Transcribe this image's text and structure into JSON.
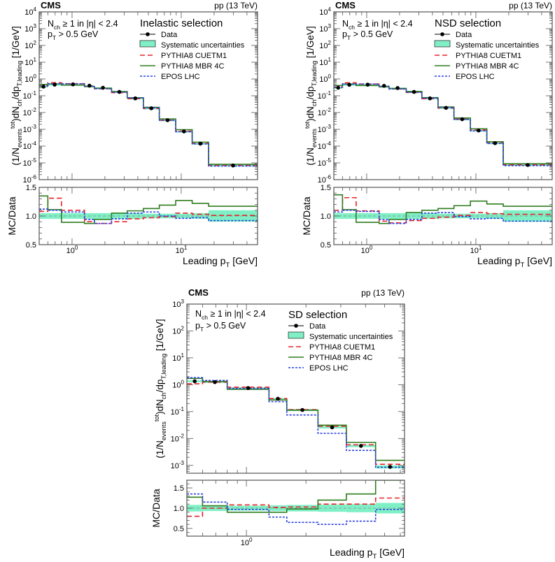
{
  "chart_data": [
    {
      "type": "line",
      "histtype": "step",
      "experiment": "CMS",
      "energy": "pp (13 TeV)",
      "title": "Inelastic selection",
      "conditions": [
        [
          [
            "n",
            "N"
          ],
          [
            "sb",
            "ch"
          ],
          [
            "n",
            " ≥ 1 in |η| < 2.4"
          ]
        ],
        [
          [
            "n",
            "p"
          ],
          [
            "sb",
            "T"
          ],
          [
            "n",
            " > 0.5 GeV"
          ]
        ]
      ],
      "xlabel": [
        [
          "n",
          "Leading p"
        ],
        [
          "sb",
          "T"
        ],
        [
          "n",
          " [GeV]"
        ]
      ],
      "ylabel": [
        [
          "n",
          "(1/N"
        ],
        [
          "sb",
          "events"
        ],
        [
          "sp",
          "tot"
        ],
        [
          "n",
          ")dN"
        ],
        [
          "sb",
          "ch"
        ],
        [
          "n",
          "/dp"
        ],
        [
          "sb",
          "T,leading"
        ],
        [
          "n",
          " [1/GeV]"
        ]
      ],
      "ratio_ylabel": "MC/Data",
      "xscale": "log",
      "yscale": "log",
      "xlim": [
        0.5,
        50
      ],
      "ylim": [
        1e-06,
        10000.0
      ],
      "ratio_ylim": [
        0.5,
        1.5
      ],
      "x_ticks": [
        {
          "base": "10",
          "exp": "0",
          "value": 1
        },
        {
          "base": "10",
          "exp": "1",
          "value": 10
        }
      ],
      "y_ticks": [
        {
          "base": "10",
          "exp": "-6",
          "value": 1e-06
        },
        {
          "base": "10",
          "exp": "-5",
          "value": 1e-05
        },
        {
          "base": "10",
          "exp": "-4",
          "value": 0.0001
        },
        {
          "base": "10",
          "exp": "-3",
          "value": 0.001
        },
        {
          "base": "10",
          "exp": "-2",
          "value": 0.01
        },
        {
          "base": "10",
          "exp": "-1",
          "value": 0.1
        },
        {
          "base": "10",
          "exp": "0",
          "value": 1
        },
        {
          "base": "10",
          "exp": "1",
          "value": 10
        },
        {
          "base": "10",
          "exp": "2",
          "value": 100
        },
        {
          "base": "10",
          "exp": "3",
          "value": 1000
        },
        {
          "base": "10",
          "exp": "4",
          "value": 10000
        }
      ],
      "ratio_ticks": [
        "0.5",
        "1.0",
        "1.5"
      ],
      "bin_edges": [
        0.5,
        0.6,
        0.8,
        1.3,
        1.6,
        2.3,
        3.2,
        4.5,
        6.3,
        8.9,
        12.6,
        17.8,
        50
      ],
      "data": [
        0.35,
        0.46,
        0.48,
        0.4,
        0.3,
        0.17,
        0.07,
        0.018,
        0.0035,
        0.00075,
        0.00014,
        7e-06
      ],
      "syst_rel": [
        0.05,
        0.05,
        0.05,
        0.05,
        0.05,
        0.05,
        0.05,
        0.04,
        0.04,
        0.04,
        0.05,
        0.1
      ],
      "legend": {
        "data": "Data",
        "syst": "Systematic uncertainties"
      },
      "series": [
        {
          "name": "PYTHIA8 CUETM1",
          "color": "#e8242a",
          "style": "dashed",
          "ratio": [
            1.08,
            1.31,
            1.1,
            0.9,
            0.87,
            0.9,
            0.95,
            0.97,
            0.99,
            1.05,
            1.03,
            1.01
          ]
        },
        {
          "name": "PYTHIA8 MBR 4C",
          "color": "#2e7d1e",
          "style": "solid",
          "ratio": [
            1.35,
            1.11,
            0.89,
            0.87,
            0.94,
            1.05,
            1.09,
            1.13,
            1.19,
            1.27,
            1.22,
            1.17
          ]
        },
        {
          "name": "EPOS LHC",
          "color": "#2a3fe0",
          "style": "dotted",
          "ratio": [
            1.12,
            1.1,
            1.07,
            0.94,
            0.87,
            0.95,
            1.05,
            1.07,
            1.0,
            0.96,
            0.97,
            0.92
          ]
        }
      ]
    },
    {
      "type": "line",
      "histtype": "step",
      "experiment": "CMS",
      "energy": "pp (13 TeV)",
      "title": "NSD selection",
      "conditions": [
        [
          [
            "n",
            "N"
          ],
          [
            "sb",
            "ch"
          ],
          [
            "n",
            " ≥ 1 in |η| < 2.4"
          ]
        ],
        [
          [
            "n",
            "p"
          ],
          [
            "sb",
            "T"
          ],
          [
            "n",
            " > 0.5 GeV"
          ]
        ]
      ],
      "xlabel": [
        [
          "n",
          "Leading p"
        ],
        [
          "sb",
          "T"
        ],
        [
          "n",
          " [GeV]"
        ]
      ],
      "ylabel": [
        [
          "n",
          "(1/N"
        ],
        [
          "sb",
          "events"
        ],
        [
          "sp",
          "tot"
        ],
        [
          "n",
          ")dN"
        ],
        [
          "sb",
          "ch"
        ],
        [
          "n",
          "/dp"
        ],
        [
          "sb",
          "T,leading"
        ],
        [
          "n",
          " [1/GeV]"
        ]
      ],
      "ratio_ylabel": "MC/Data",
      "xscale": "log",
      "yscale": "log",
      "xlim": [
        0.5,
        50
      ],
      "ylim": [
        1e-06,
        10000.0
      ],
      "ratio_ylim": [
        0.5,
        1.5
      ],
      "x_ticks": [
        {
          "base": "10",
          "exp": "0",
          "value": 1
        },
        {
          "base": "10",
          "exp": "1",
          "value": 10
        }
      ],
      "y_ticks": [
        {
          "base": "10",
          "exp": "-6",
          "value": 1e-06
        },
        {
          "base": "10",
          "exp": "-5",
          "value": 1e-05
        },
        {
          "base": "10",
          "exp": "-4",
          "value": 0.0001
        },
        {
          "base": "10",
          "exp": "-3",
          "value": 0.001
        },
        {
          "base": "10",
          "exp": "-2",
          "value": 0.01
        },
        {
          "base": "10",
          "exp": "-1",
          "value": 0.1
        },
        {
          "base": "10",
          "exp": "0",
          "value": 1
        },
        {
          "base": "10",
          "exp": "1",
          "value": 10
        },
        {
          "base": "10",
          "exp": "2",
          "value": 100
        },
        {
          "base": "10",
          "exp": "3",
          "value": 1000
        },
        {
          "base": "10",
          "exp": "4",
          "value": 10000
        }
      ],
      "ratio_ticks": [
        "0.5",
        "1.0",
        "1.5"
      ],
      "bin_edges": [
        0.5,
        0.6,
        0.8,
        1.3,
        1.6,
        2.3,
        3.2,
        4.5,
        6.3,
        8.9,
        12.6,
        17.8,
        50
      ],
      "data": [
        0.3,
        0.45,
        0.46,
        0.39,
        0.29,
        0.17,
        0.07,
        0.019,
        0.004,
        0.00085,
        0.00015,
        7.5e-06
      ],
      "syst_rel": [
        0.05,
        0.05,
        0.05,
        0.05,
        0.05,
        0.05,
        0.05,
        0.04,
        0.04,
        0.04,
        0.05,
        0.1
      ],
      "legend": {
        "data": "Data",
        "syst": "Systematic uncertainties"
      },
      "series": [
        {
          "name": "PYTHIA8 CUETM1",
          "color": "#e8242a",
          "style": "dashed",
          "ratio": [
            1.1,
            1.32,
            1.09,
            0.91,
            0.88,
            0.92,
            0.96,
            0.98,
            1.01,
            1.06,
            1.04,
            1.03
          ]
        },
        {
          "name": "PYTHIA8 MBR 4C",
          "color": "#2e7d1e",
          "style": "solid",
          "ratio": [
            1.37,
            1.11,
            0.89,
            0.87,
            0.94,
            1.06,
            1.1,
            1.13,
            1.18,
            1.26,
            1.21,
            1.17
          ]
        },
        {
          "name": "EPOS LHC",
          "color": "#2a3fe0",
          "style": "dotted",
          "ratio": [
            1.07,
            1.1,
            1.08,
            0.94,
            0.87,
            0.94,
            1.05,
            1.06,
            0.99,
            0.95,
            0.96,
            0.91
          ]
        }
      ]
    },
    {
      "type": "line",
      "histtype": "step",
      "experiment": "CMS",
      "energy": "pp (13 TeV)",
      "title": "SD selection",
      "conditions": [
        [
          [
            "n",
            "N"
          ],
          [
            "sb",
            "ch"
          ],
          [
            "n",
            " ≥ 1 in |η| < 2.4"
          ]
        ],
        [
          [
            "n",
            "p"
          ],
          [
            "sb",
            "T"
          ],
          [
            "n",
            " > 0.5 GeV"
          ]
        ]
      ],
      "xlabel": [
        [
          "n",
          "Leading p"
        ],
        [
          "sb",
          "T"
        ],
        [
          "n",
          " [GeV]"
        ]
      ],
      "ylabel": [
        [
          "n",
          "(1/N"
        ],
        [
          "sb",
          "events"
        ],
        [
          "sp",
          "tot"
        ],
        [
          "n",
          ")dN"
        ],
        [
          "sb",
          "ch"
        ],
        [
          "n",
          "/dp"
        ],
        [
          "sb",
          "T,leading"
        ],
        [
          "n",
          " [1/GeV]"
        ]
      ],
      "ratio_ylabel": "MC/Data",
      "xscale": "log",
      "yscale": "log",
      "xlim": [
        0.5,
        6.3
      ],
      "ylim": [
        0.00051,
        1000
      ],
      "ratio_ylim": [
        0.31,
        1.69
      ],
      "x_ticks": [
        {
          "base": "10",
          "exp": "0",
          "value": 1
        }
      ],
      "y_ticks": [
        {
          "base": "10",
          "exp": "-3",
          "value": 0.001
        },
        {
          "base": "10",
          "exp": "-2",
          "value": 0.01
        },
        {
          "base": "10",
          "exp": "-1",
          "value": 0.1
        },
        {
          "base": "10",
          "exp": "0",
          "value": 1
        },
        {
          "base": "10",
          "exp": "1",
          "value": 10
        },
        {
          "base": "10",
          "exp": "2",
          "value": 100
        },
        {
          "base": "10",
          "exp": "3",
          "value": 1000
        }
      ],
      "ratio_ticks": [
        "0.5",
        "1.0",
        "1.5"
      ],
      "bin_edges": [
        0.5,
        0.6,
        0.8,
        1.3,
        1.6,
        2.3,
        3.2,
        4.5,
        6.3
      ],
      "data": [
        1.35,
        1.25,
        0.75,
        0.3,
        0.115,
        0.026,
        0.0053,
        0.00088
      ],
      "syst_rel": [
        0.08,
        0.07,
        0.06,
        0.07,
        0.08,
        0.09,
        0.1,
        0.13
      ],
      "legend": {
        "data": "Data",
        "syst": "Systematic uncertainties"
      },
      "series": [
        {
          "name": "PYTHIA8 CUETM1",
          "color": "#e8242a",
          "style": "dashed",
          "ratio": [
            0.8,
            1.0,
            1.08,
            1.02,
            1.03,
            1.1,
            1.1,
            1.25
          ]
        },
        {
          "name": "PYTHIA8 MBR 4C",
          "color": "#2e7d1e",
          "style": "solid",
          "ratio": [
            1.27,
            1.06,
            0.9,
            0.9,
            0.98,
            1.2,
            1.35,
            1.75
          ]
        },
        {
          "name": "EPOS LHC",
          "color": "#2a3fe0",
          "style": "dotted",
          "ratio": [
            1.35,
            1.15,
            0.97,
            0.78,
            0.65,
            0.6,
            0.68,
            0.97
          ]
        }
      ]
    }
  ]
}
